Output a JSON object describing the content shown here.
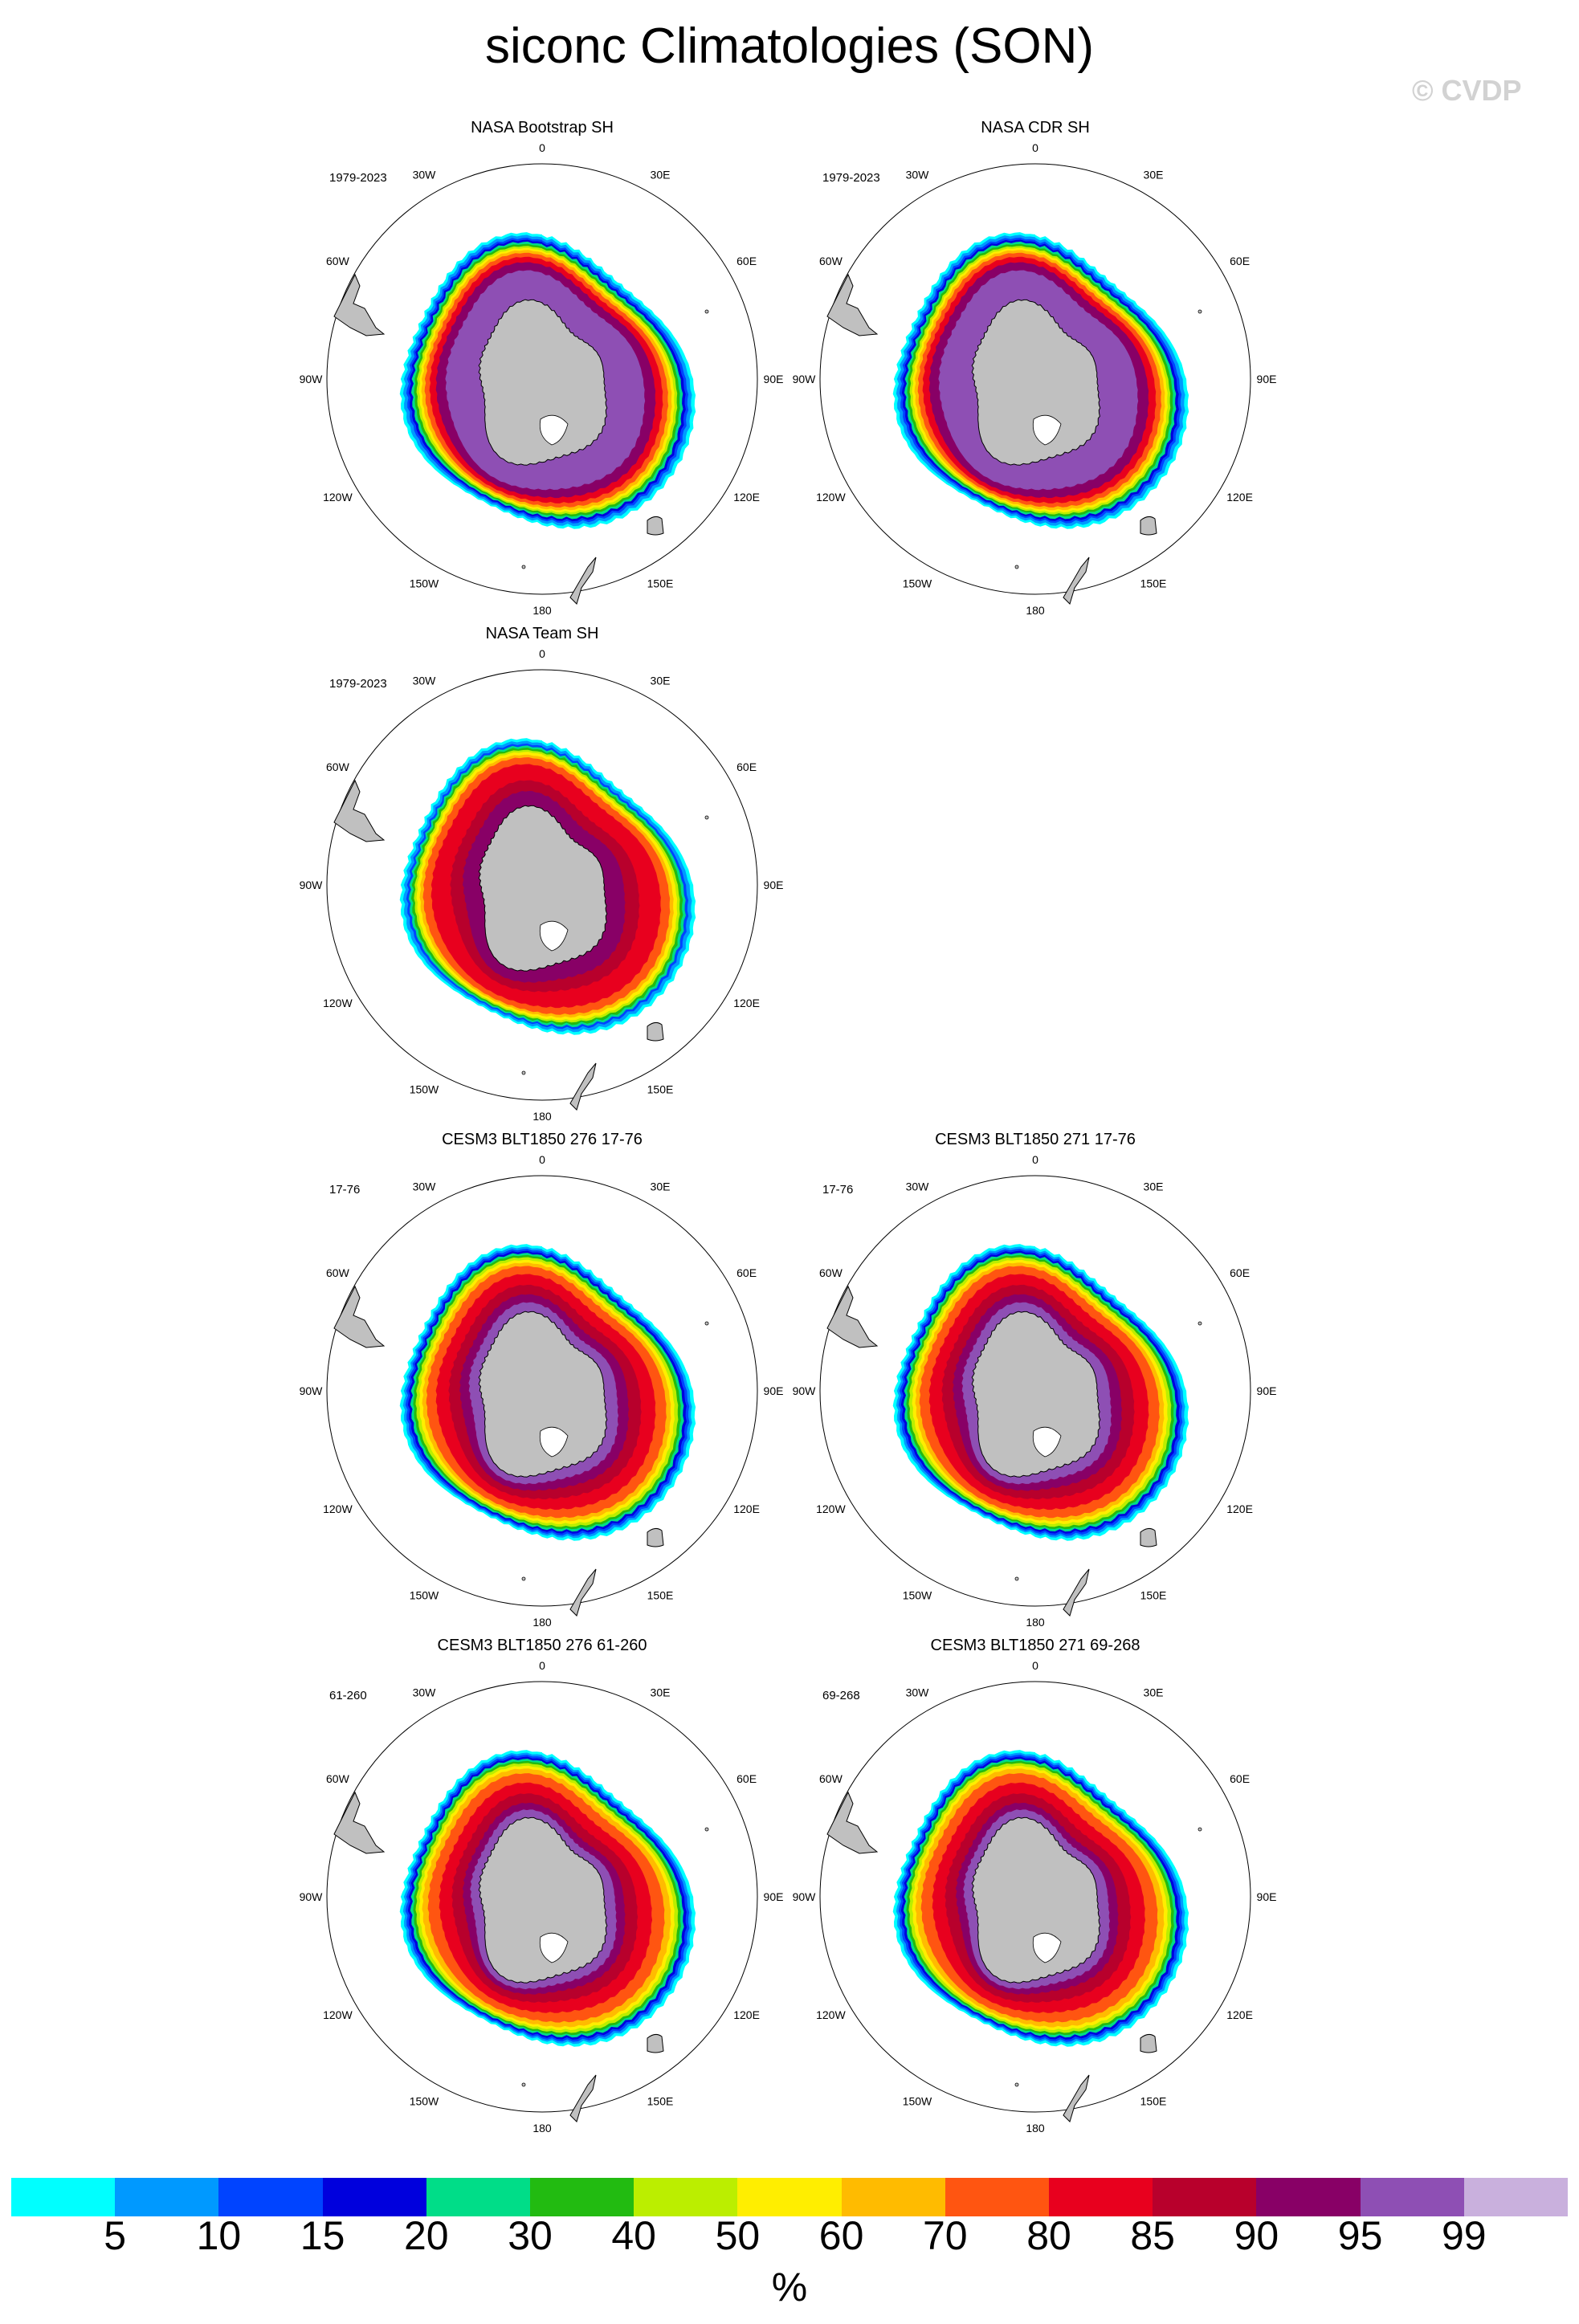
{
  "title": "siconc Climatologies (SON)",
  "watermark": "© CVDP",
  "units": "%",
  "colors": {
    "land": "#c0c0c0",
    "missing": "#ffffff"
  },
  "colorbar": {
    "colors": [
      "#00ffff",
      "#0099ff",
      "#0044ff",
      "#0000dd",
      "#00dd88",
      "#22bb11",
      "#bbee00",
      "#ffee00",
      "#ffbb00",
      "#ff5511",
      "#e8001e",
      "#b8002c",
      "#880066",
      "#8e4fb4",
      "#c9b0dd"
    ],
    "labels": [
      "5",
      "10",
      "15",
      "20",
      "30",
      "40",
      "50",
      "60",
      "70",
      "80",
      "85",
      "90",
      "95",
      "99"
    ]
  },
  "map": {
    "projection": "south-polar-stereographic",
    "lon_labels": [
      "0",
      "30E",
      "60E",
      "90E",
      "120E",
      "150E",
      "180",
      "150W",
      "120W",
      "90W",
      "60W",
      "30W"
    ]
  },
  "panels": [
    {
      "id": "nasa-bootstrap",
      "title": "NASA Bootstrap SH",
      "period": "1979-2023",
      "pattern": "obs-boot"
    },
    {
      "id": "nasa-cdr",
      "title": "NASA CDR SH",
      "period": "1979-2023",
      "pattern": "obs-boot"
    },
    {
      "id": "nasa-team",
      "title": "NASA Team SH",
      "period": "1979-2023",
      "pattern": "obs-team"
    },
    {
      "id": "cesm3-276-a",
      "title": "CESM3 BLT1850 276 17-76",
      "period": "17-76",
      "pattern": "model-early"
    },
    {
      "id": "cesm3-271-a",
      "title": "CESM3 BLT1850 271 17-76",
      "period": "17-76",
      "pattern": "model-early"
    },
    {
      "id": "cesm3-276-b",
      "title": "CESM3 BLT1850 276 61-260",
      "period": "61-260",
      "pattern": "model-late"
    },
    {
      "id": "cesm3-271-b",
      "title": "CESM3 BLT1850 271 69-268",
      "period": "69-268",
      "pattern": "model-late"
    }
  ]
}
